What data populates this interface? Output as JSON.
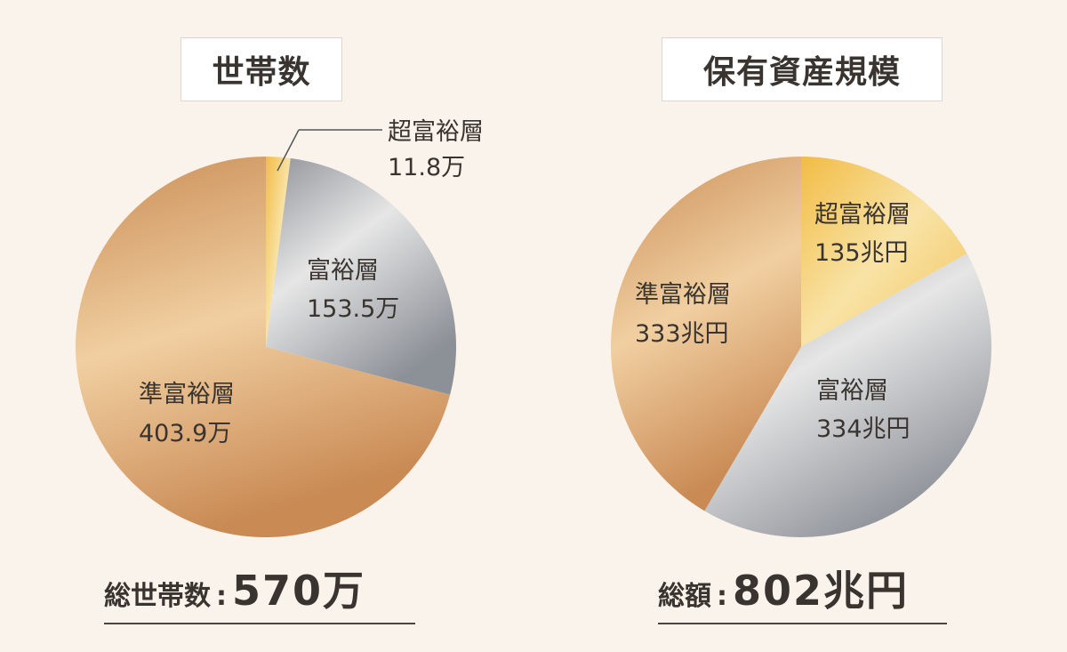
{
  "left_title": "世帯数",
  "right_title": "保有資産規模",
  "left_total_label": "総世帯数",
  "left_total_value": "570万",
  "right_total_label": "総額",
  "right_total_value": "802兆円",
  "colon": ":",
  "chart_data": [
    {
      "type": "pie",
      "title": "世帯数",
      "unit": "万",
      "slices": [
        {
          "name": "超富裕層",
          "value": 11.8,
          "label": "11.8万"
        },
        {
          "name": "富裕層",
          "value": 153.5,
          "label": "153.5万"
        },
        {
          "name": "準富裕層",
          "value": 403.9,
          "label": "403.9万"
        }
      ],
      "total": 570
    },
    {
      "type": "pie",
      "title": "保有資産規模",
      "unit": "兆円",
      "slices": [
        {
          "name": "超富裕層",
          "value": 135,
          "label": "135兆円"
        },
        {
          "name": "富裕層",
          "value": 334,
          "label": "334兆円"
        },
        {
          "name": "準富裕層",
          "value": 333,
          "label": "333兆円"
        }
      ],
      "total": 802
    }
  ],
  "colors": {
    "gold": "#f3c24e",
    "silver": "#a7a9ae",
    "bronze": "#d39b63",
    "background": "#faf3ec"
  }
}
